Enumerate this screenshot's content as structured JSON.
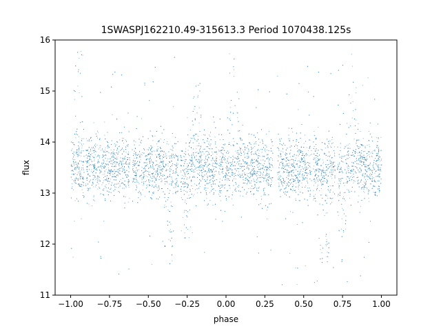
{
  "chart_data": {
    "type": "scatter",
    "title": "1SWASPJ162210.49-315613.3 Period 1070438.125s",
    "xlabel": "phase",
    "ylabel": "flux",
    "xlim": [
      -1.1,
      1.1
    ],
    "ylim": [
      11.0,
      16.0
    ],
    "xticks": [
      -1.0,
      -0.75,
      -0.5,
      -0.25,
      0.0,
      0.25,
      0.5,
      0.75,
      1.0
    ],
    "xtick_labels": [
      "−1.00",
      "−0.75",
      "−0.50",
      "−0.25",
      "0.00",
      "0.25",
      "0.50",
      "0.75",
      "1.00"
    ],
    "yticks": [
      11,
      12,
      13,
      14,
      15,
      16
    ],
    "ytick_labels": [
      "11",
      "12",
      "13",
      "14",
      "15",
      "16"
    ],
    "grid": false,
    "marker_color": "#1f77b4",
    "series": [
      {
        "x_range": [
          -1.0,
          1.0
        ],
        "median_flux": 13.5,
        "typical_spread": [
          12.9,
          14.1
        ],
        "extreme_range": [
          11.2,
          15.8
        ],
        "folded_period_repeat": 1.0,
        "approx_points": 30000,
        "dips": [
          {
            "phase": -0.37,
            "min_flux": 11.6
          },
          {
            "phase": -0.26,
            "min_flux": 12.1
          },
          {
            "phase": 0.63,
            "min_flux": 11.6
          },
          {
            "phase": 0.74,
            "min_flux": 12.1
          }
        ],
        "spikes": [
          {
            "phase": -0.95,
            "max_flux": 15.8
          },
          {
            "phase": -0.19,
            "max_flux": 15.2
          },
          {
            "phase": 0.05,
            "max_flux": 15.8
          },
          {
            "phase": 0.81,
            "max_flux": 15.2
          }
        ]
      }
    ]
  }
}
